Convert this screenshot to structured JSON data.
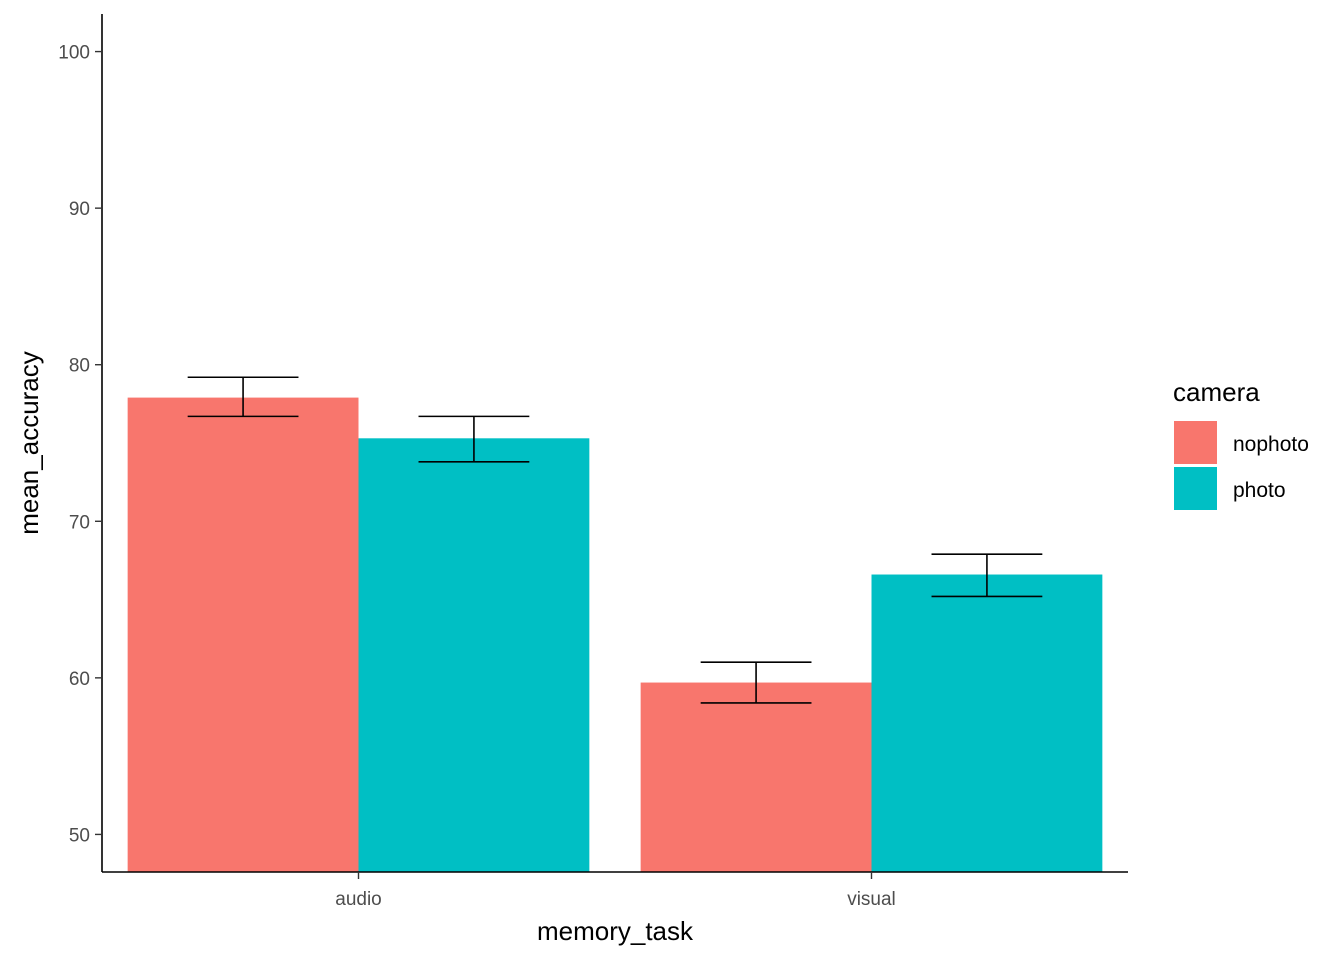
{
  "chart_data": {
    "type": "bar",
    "xlabel": "memory_task",
    "ylabel": "mean_accuracy",
    "categories": [
      "audio",
      "visual"
    ],
    "ylim": [
      47.6,
      102.4
    ],
    "yticks": [
      50,
      60,
      70,
      80,
      90,
      100
    ],
    "grid": false,
    "legend": {
      "title": "camera",
      "position": "right"
    },
    "series": [
      {
        "name": "nophoto",
        "color": "#F8766D",
        "values": [
          77.9,
          59.7
        ],
        "error_low": [
          76.7,
          58.4
        ],
        "error_high": [
          79.2,
          61.0
        ]
      },
      {
        "name": "photo",
        "color": "#00BFC4",
        "values": [
          75.3,
          66.6
        ],
        "error_low": [
          73.8,
          65.2
        ],
        "error_high": [
          76.7,
          67.9
        ]
      }
    ]
  }
}
